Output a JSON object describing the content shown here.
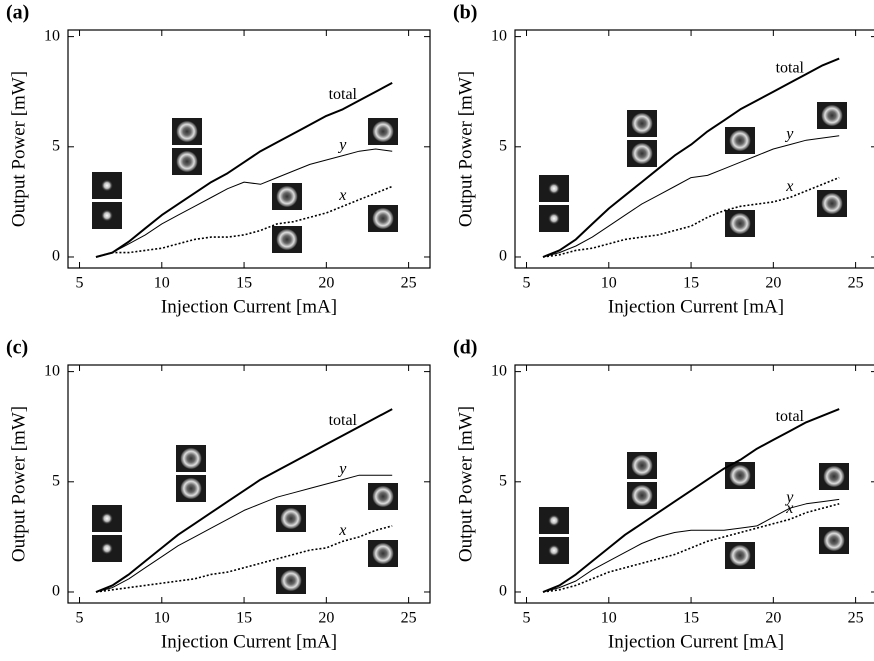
{
  "chart_data": [
    {
      "type": "line",
      "title": "(a)",
      "xlabel": "Injection Current [mA]",
      "ylabel": "Output Power [mW]",
      "xlim": [
        4.3,
        26.3
      ],
      "ylim": [
        -0.5,
        10.3
      ],
      "xticks": [
        5,
        10,
        15,
        20,
        25
      ],
      "yticks": [
        0,
        5,
        10
      ],
      "x": [
        6,
        7,
        8,
        9,
        10,
        11,
        12,
        13,
        14,
        15,
        16,
        17,
        18,
        19,
        20,
        21,
        22,
        23,
        24
      ],
      "series": [
        {
          "name": "total",
          "color": "#000000",
          "linestyle": "solid",
          "linewidth": 2,
          "values": [
            0,
            0.2,
            0.7,
            1.3,
            1.9,
            2.4,
            2.9,
            3.4,
            3.8,
            4.3,
            4.8,
            5.2,
            5.6,
            6.0,
            6.4,
            6.7,
            7.1,
            7.5,
            7.9
          ]
        },
        {
          "name": "y",
          "color": "#000000",
          "linestyle": "solid",
          "linewidth": 1,
          "values": [
            0,
            0.2,
            0.6,
            1.0,
            1.5,
            1.9,
            2.3,
            2.7,
            3.1,
            3.4,
            3.3,
            3.6,
            3.9,
            4.2,
            4.4,
            4.6,
            4.8,
            4.9,
            4.8
          ]
        },
        {
          "name": "x",
          "color": "#000000",
          "linestyle": "dotted",
          "linewidth": 1.6,
          "values": [
            0,
            0.2,
            0.2,
            0.3,
            0.4,
            0.6,
            0.8,
            0.9,
            0.9,
            1.0,
            1.2,
            1.5,
            1.6,
            1.8,
            2.0,
            2.3,
            2.6,
            2.9,
            3.2
          ]
        }
      ]
    },
    {
      "type": "line",
      "title": "(b)",
      "xlabel": "Injection Current [mA]",
      "ylabel": "Output Power [mW]",
      "xlim": [
        4.3,
        26.3
      ],
      "ylim": [
        -0.5,
        10.3
      ],
      "xticks": [
        5,
        10,
        15,
        20,
        25
      ],
      "yticks": [
        0,
        5,
        10
      ],
      "x": [
        6,
        7,
        8,
        9,
        10,
        11,
        12,
        13,
        14,
        15,
        16,
        17,
        18,
        19,
        20,
        21,
        22,
        23,
        24
      ],
      "series": [
        {
          "name": "total",
          "color": "#000000",
          "linestyle": "solid",
          "linewidth": 2,
          "values": [
            0,
            0.3,
            0.8,
            1.5,
            2.2,
            2.8,
            3.4,
            4.0,
            4.6,
            5.1,
            5.7,
            6.2,
            6.7,
            7.1,
            7.5,
            7.9,
            8.3,
            8.7,
            9.0
          ]
        },
        {
          "name": "y",
          "color": "#000000",
          "linestyle": "solid",
          "linewidth": 1,
          "values": [
            0,
            0.2,
            0.5,
            0.9,
            1.4,
            1.9,
            2.4,
            2.8,
            3.2,
            3.6,
            3.7,
            4.0,
            4.3,
            4.6,
            4.9,
            5.1,
            5.3,
            5.4,
            5.5
          ]
        },
        {
          "name": "x",
          "color": "#000000",
          "linestyle": "dotted",
          "linewidth": 1.6,
          "values": [
            0,
            0.1,
            0.3,
            0.4,
            0.6,
            0.8,
            0.9,
            1.0,
            1.2,
            1.4,
            1.8,
            2.1,
            2.3,
            2.4,
            2.5,
            2.7,
            3.0,
            3.3,
            3.6
          ]
        }
      ]
    },
    {
      "type": "line",
      "title": "(c)",
      "xlabel": "Injection Current [mA]",
      "ylabel": "Output Power [mW]",
      "xlim": [
        4.3,
        26.3
      ],
      "ylim": [
        -0.5,
        10.3
      ],
      "xticks": [
        5,
        10,
        15,
        20,
        25
      ],
      "yticks": [
        0,
        5,
        10
      ],
      "x": [
        6,
        7,
        8,
        9,
        10,
        11,
        12,
        13,
        14,
        15,
        16,
        17,
        18,
        19,
        20,
        21,
        22,
        23,
        24
      ],
      "series": [
        {
          "name": "total",
          "color": "#000000",
          "linestyle": "solid",
          "linewidth": 2,
          "values": [
            0,
            0.3,
            0.8,
            1.4,
            2.0,
            2.6,
            3.1,
            3.6,
            4.1,
            4.6,
            5.1,
            5.5,
            5.9,
            6.3,
            6.7,
            7.1,
            7.5,
            7.9,
            8.3
          ]
        },
        {
          "name": "y",
          "color": "#000000",
          "linestyle": "solid",
          "linewidth": 1,
          "values": [
            0,
            0.2,
            0.6,
            1.1,
            1.6,
            2.1,
            2.5,
            2.9,
            3.3,
            3.7,
            4.0,
            4.3,
            4.5,
            4.7,
            4.9,
            5.1,
            5.3,
            5.3,
            5.3
          ]
        },
        {
          "name": "x",
          "color": "#000000",
          "linestyle": "dotted",
          "linewidth": 1.6,
          "values": [
            0,
            0.1,
            0.2,
            0.3,
            0.4,
            0.5,
            0.6,
            0.8,
            0.9,
            1.1,
            1.3,
            1.5,
            1.7,
            1.9,
            2.0,
            2.3,
            2.5,
            2.8,
            3.0
          ]
        }
      ]
    },
    {
      "type": "line",
      "title": "(d)",
      "xlabel": "Injection Current [mA]",
      "ylabel": "Output Power [mW]",
      "xlim": [
        4.3,
        26.3
      ],
      "ylim": [
        -0.5,
        10.3
      ],
      "xticks": [
        5,
        10,
        15,
        20,
        25
      ],
      "yticks": [
        0,
        5,
        10
      ],
      "x": [
        6,
        7,
        8,
        9,
        10,
        11,
        12,
        13,
        14,
        15,
        16,
        17,
        18,
        19,
        20,
        21,
        22,
        23,
        24
      ],
      "series": [
        {
          "name": "total",
          "color": "#000000",
          "linestyle": "solid",
          "linewidth": 2,
          "values": [
            0,
            0.3,
            0.8,
            1.4,
            2.0,
            2.6,
            3.1,
            3.6,
            4.1,
            4.6,
            5.1,
            5.6,
            6.0,
            6.5,
            6.9,
            7.3,
            7.7,
            8.0,
            8.3
          ]
        },
        {
          "name": "y",
          "color": "#000000",
          "linestyle": "solid",
          "linewidth": 1,
          "values": [
            0,
            0.2,
            0.5,
            1.0,
            1.4,
            1.8,
            2.2,
            2.5,
            2.7,
            2.8,
            2.8,
            2.8,
            2.9,
            3.0,
            3.4,
            3.8,
            4.0,
            4.1,
            4.2
          ]
        },
        {
          "name": "x",
          "color": "#000000",
          "linestyle": "dotted",
          "linewidth": 1.6,
          "values": [
            0,
            0.1,
            0.3,
            0.6,
            0.9,
            1.1,
            1.3,
            1.5,
            1.7,
            2.0,
            2.3,
            2.5,
            2.7,
            2.9,
            3.1,
            3.3,
            3.6,
            3.8,
            4.0
          ]
        }
      ]
    }
  ]
}
